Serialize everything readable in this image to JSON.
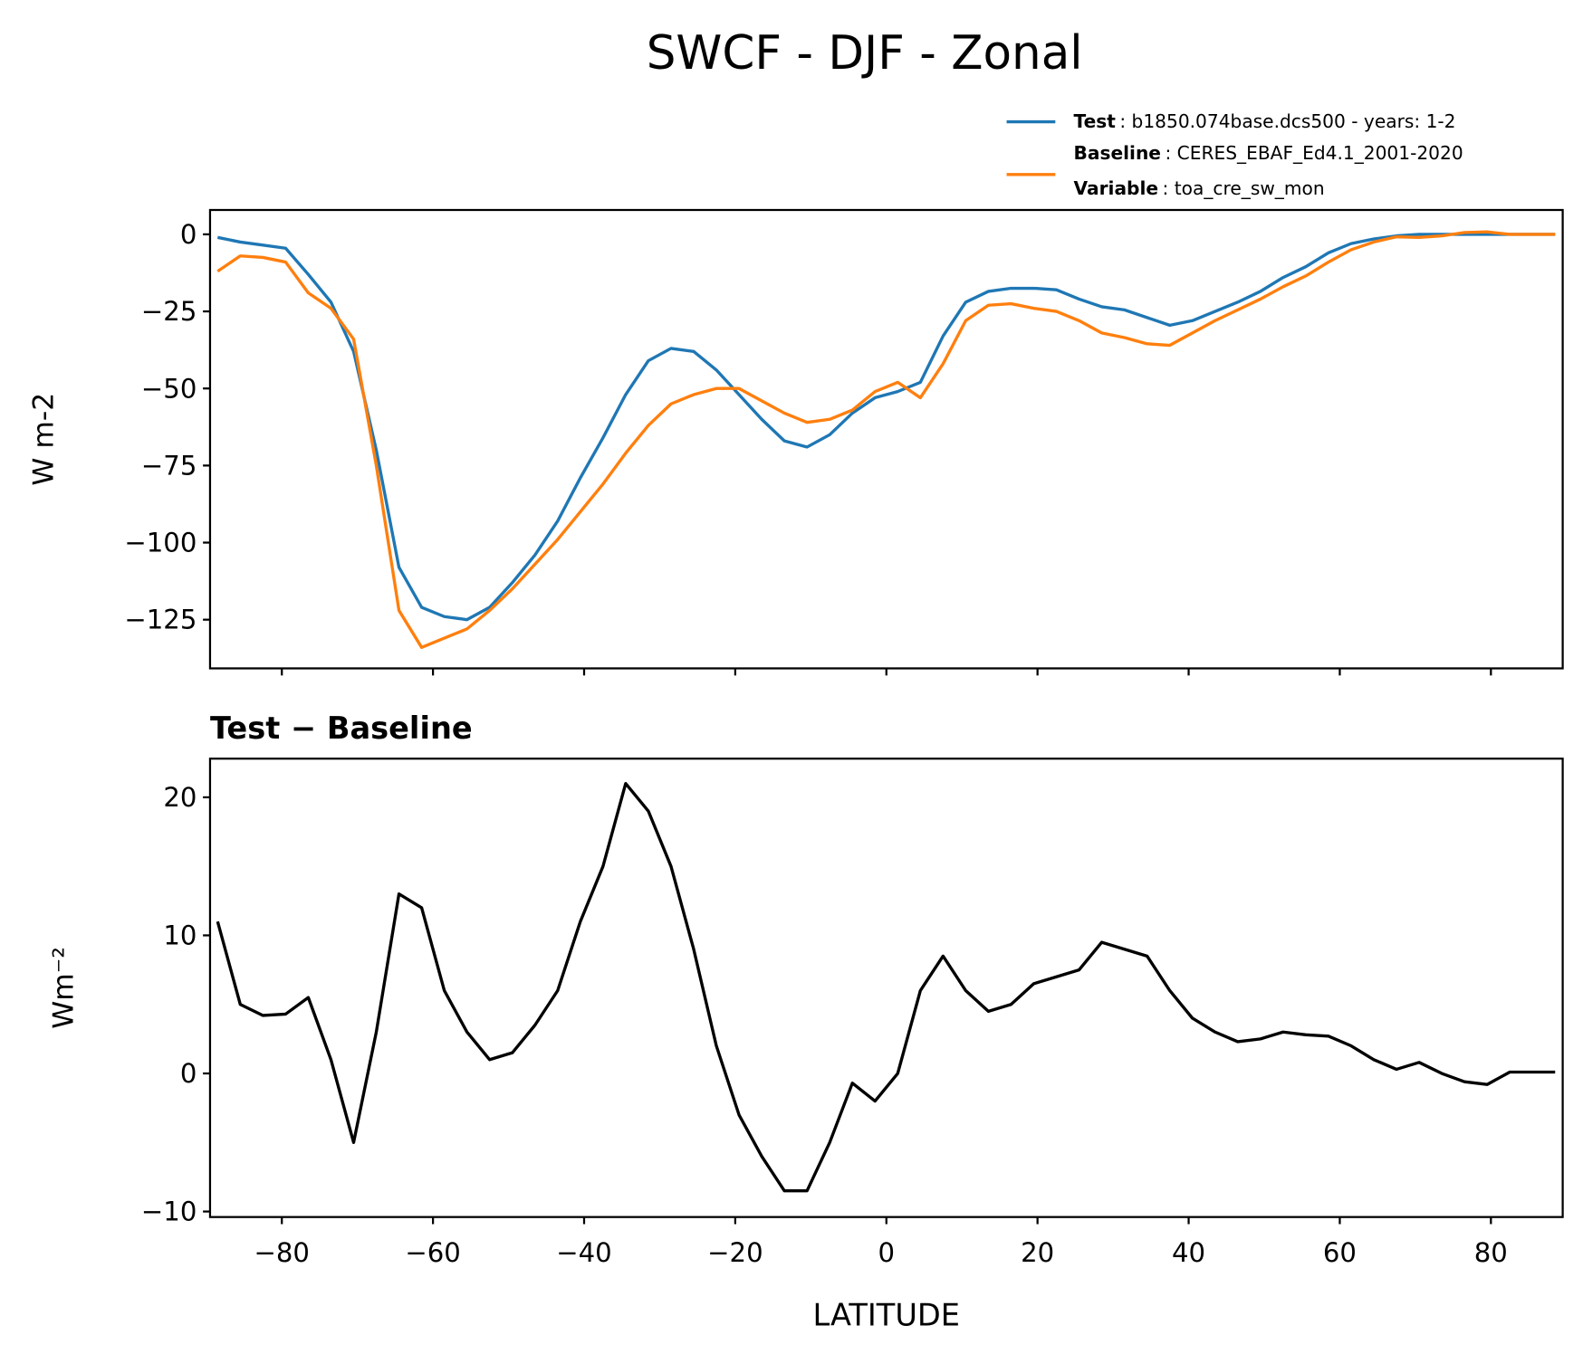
{
  "title": "SWCF - DJF - Zonal",
  "chart_data": [
    {
      "type": "line",
      "ylabel": "W m-2",
      "x": [
        -88.5,
        -85.5,
        -82.5,
        -79.5,
        -76.5,
        -73.5,
        -70.5,
        -67.5,
        -64.5,
        -61.5,
        -58.5,
        -55.5,
        -52.5,
        -49.5,
        -46.5,
        -43.5,
        -40.5,
        -37.5,
        -34.5,
        -31.5,
        -28.5,
        -25.5,
        -22.5,
        -19.5,
        -16.5,
        -13.5,
        -10.5,
        -7.5,
        -4.5,
        -1.5,
        1.5,
        4.5,
        7.5,
        10.5,
        13.5,
        16.5,
        19.5,
        22.5,
        25.5,
        28.5,
        31.5,
        34.5,
        37.5,
        40.5,
        43.5,
        46.5,
        49.5,
        52.5,
        55.5,
        58.5,
        61.5,
        64.5,
        67.5,
        70.5,
        73.5,
        76.5,
        79.5,
        82.5,
        85.5,
        88.5
      ],
      "series": [
        {
          "name": "Test",
          "description": ": b1850.074base.dcs500 - years: 1-2",
          "color": "#1f77b4",
          "values": [
            -1,
            -2.5,
            -3.5,
            -4.5,
            -13,
            -22,
            -38,
            -70,
            -108,
            -121,
            -124,
            -125,
            -121,
            -113,
            -104,
            -93,
            -79,
            -66,
            -52,
            -41,
            -37,
            -38,
            -44,
            -52,
            -60,
            -67,
            -69,
            -65,
            -58,
            -53,
            -51,
            -48,
            -33,
            -22,
            -18.5,
            -17.5,
            -17.5,
            -18,
            -21,
            -23.5,
            -24.5,
            -27,
            -29.5,
            -28,
            -25,
            -22,
            -18.5,
            -14,
            -10.5,
            -6,
            -3,
            -1.5,
            -0.5,
            0,
            0,
            0,
            0,
            0,
            0,
            0
          ]
        },
        {
          "name": "Baseline",
          "description": ": CERES_EBAF_Ed4.1_2001-2020",
          "color": "#ff7f0e",
          "values": [
            -12,
            -7,
            -7.5,
            -9,
            -19,
            -24,
            -34,
            -75,
            -122,
            -134,
            -131,
            -128,
            -122,
            -115,
            -107,
            -99,
            -90,
            -81,
            -71,
            -62,
            -55,
            -52,
            -50,
            -50,
            -54,
            -58,
            -61,
            -60,
            -57,
            -51,
            -48,
            -53,
            -42,
            -28,
            -23,
            -22.5,
            -24,
            -25,
            -28,
            -32,
            -33.5,
            -35.5,
            -36,
            -32,
            -28,
            -24.5,
            -21,
            -17,
            -13.5,
            -9,
            -5,
            -2.5,
            -0.8,
            -1,
            -0.5,
            0.6,
            0.8,
            0,
            0,
            0
          ]
        }
      ],
      "legend_extra": {
        "label": "Variable",
        "value": ": toa_cre_sw_mon"
      },
      "xlim": [
        -89.5,
        89.5
      ],
      "xticks": [
        -80,
        -60,
        -40,
        -20,
        0,
        20,
        40,
        60,
        80
      ],
      "ylim": [
        -140.8,
        7.9
      ],
      "yticks": [
        {
          "value": -125,
          "label": "−125"
        },
        {
          "value": -100,
          "label": "−100"
        },
        {
          "value": -75,
          "label": "−75"
        },
        {
          "value": -50,
          "label": "−50"
        },
        {
          "value": -25,
          "label": "−25"
        },
        0
      ]
    },
    {
      "type": "line",
      "title": "Test − Baseline",
      "xlabel": "LATITUDE",
      "ylabel": "Wm⁻²",
      "x": [
        -88.5,
        -85.5,
        -82.5,
        -79.5,
        -76.5,
        -73.5,
        -70.5,
        -67.5,
        -64.5,
        -61.5,
        -58.5,
        -55.5,
        -52.5,
        -49.5,
        -46.5,
        -43.5,
        -40.5,
        -37.5,
        -34.5,
        -31.5,
        -28.5,
        -25.5,
        -22.5,
        -19.5,
        -16.5,
        -13.5,
        -10.5,
        -7.5,
        -4.5,
        -1.5,
        1.5,
        4.5,
        7.5,
        10.5,
        13.5,
        16.5,
        19.5,
        22.5,
        25.5,
        28.5,
        31.5,
        34.5,
        37.5,
        40.5,
        43.5,
        46.5,
        49.5,
        52.5,
        55.5,
        58.5,
        61.5,
        64.5,
        67.5,
        70.5,
        73.5,
        76.5,
        79.5,
        82.5,
        85.5,
        88.5
      ],
      "series": [
        {
          "color": "#000000",
          "values": [
            11,
            5,
            4.2,
            4.3,
            5.5,
            1,
            -5,
            3,
            13,
            12,
            6,
            3,
            1,
            1.5,
            3.5,
            6,
            11,
            15,
            21,
            19,
            15,
            9,
            2,
            -3,
            -6,
            -8.5,
            -8.5,
            -5,
            -0.7,
            -2,
            0,
            6,
            8.5,
            6,
            4.5,
            5,
            6.5,
            7,
            7.5,
            9.5,
            9,
            8.5,
            6,
            4,
            3,
            2.3,
            2.5,
            3,
            2.8,
            2.7,
            2,
            1,
            0.3,
            0.8,
            0,
            -0.6,
            -0.8,
            0.1,
            0.1,
            0.1
          ]
        }
      ],
      "xlim": [
        -89.5,
        89.5
      ],
      "xticks": [
        {
          "value": -80,
          "label": "−80"
        },
        {
          "value": -60,
          "label": "−60"
        },
        {
          "value": -40,
          "label": "−40"
        },
        {
          "value": -20,
          "label": "−20"
        },
        0,
        20,
        40,
        60,
        80
      ],
      "ylim": [
        -10.4,
        22.8
      ],
      "yticks": [
        {
          "value": -10,
          "label": "−10"
        },
        0,
        10,
        20
      ]
    }
  ]
}
